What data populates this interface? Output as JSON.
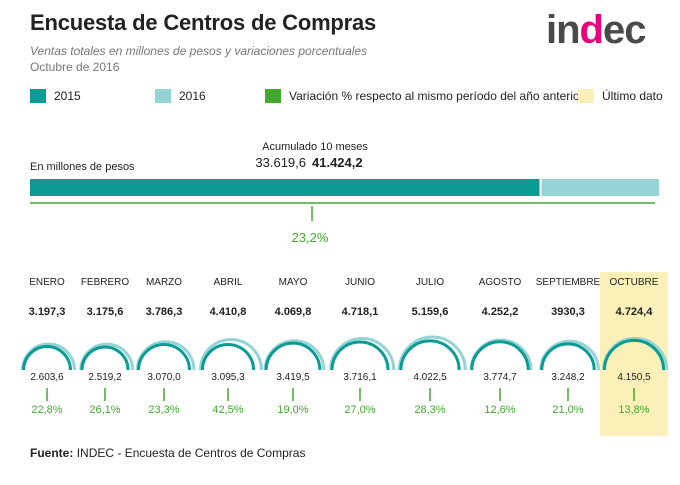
{
  "header": {
    "title": "Encuesta de Centros de Compras",
    "subtitle": "Ventas totales en millones de pesos y variaciones porcentuales",
    "period": "Octubre de 2016",
    "logo_text_a": "in",
    "logo_text_b": "d",
    "logo_text_c": "ec"
  },
  "legend": {
    "items": [
      {
        "label": "2015",
        "color": "#0a9b95"
      },
      {
        "label": "2016",
        "color": "#95d3d5"
      },
      {
        "label": "Variación % respecto al mismo período del año anterior",
        "color": "#43a830"
      },
      {
        "label": "Último dato",
        "color": "#fbf1b8"
      }
    ]
  },
  "accumulated": {
    "caption": "Acumulado 10 meses",
    "value_2015": "33.619,6",
    "value_2016": "41.424,2",
    "unit_label": "En millones de pesos",
    "variation": "23,2%"
  },
  "colors": {
    "c2015": "#0a9b95",
    "c2016": "#95d3d5",
    "green": "#43a830",
    "highlight": "#fbf1b8"
  },
  "chart_data": {
    "type": "bar",
    "title": "Encuesta de Centros de Compras",
    "subtitle": "Ventas totales en millones de pesos y variaciones porcentuales",
    "accumulated_total": {
      "label": "Acumulado 10 meses",
      "series": [
        {
          "name": "2015",
          "value": 33619.6
        },
        {
          "name": "2016",
          "value": 41424.2
        }
      ],
      "variation_pct": 23.2
    },
    "categories": [
      "ENERO",
      "FEBRERO",
      "MARZO",
      "ABRIL",
      "MAYO",
      "JUNIO",
      "JULIO",
      "AGOSTO",
      "SEPTIEMBRE",
      "OCTUBRE"
    ],
    "series": [
      {
        "name": "2016",
        "values": [
          3197.3,
          3175.6,
          3786.3,
          4410.8,
          4069.8,
          4718.1,
          5159.6,
          4252.2,
          3930.3,
          4724.4
        ]
      },
      {
        "name": "2015",
        "values": [
          2603.6,
          2519.2,
          3070.0,
          3095.3,
          3419.5,
          3716.1,
          4022.5,
          3774.7,
          3248.2,
          4150.5
        ]
      }
    ],
    "variation_pct": [
      22.8,
      26.1,
      23.3,
      42.5,
      19.0,
      27.0,
      28.3,
      12.6,
      21.0,
      13.8
    ],
    "labels_2016": [
      "3.197,3",
      "3.175,6",
      "3.786,3",
      "4.410,8",
      "4.069,8",
      "4.718,1",
      "5.159,6",
      "4.252,2",
      "3930,3",
      "4.724,4"
    ],
    "labels_2015": [
      "2.603,6",
      "2.519,2",
      "3.070,0",
      "3.095,3",
      "3.419,5",
      "3.716,1",
      "4.022,5",
      "3.774,7",
      "3.248,2",
      "4.150,5"
    ],
    "labels_pct": [
      "22,8%",
      "26,1%",
      "23,3%",
      "42,5%",
      "19,0%",
      "27,0%",
      "28,3%",
      "12,6%",
      "21,0%",
      "13,8%"
    ],
    "highlight_category": "OCTUBRE"
  },
  "footer": {
    "source_label": "Fuente:",
    "source_text": "INDEC - Encuesta de Centros de Compras"
  }
}
